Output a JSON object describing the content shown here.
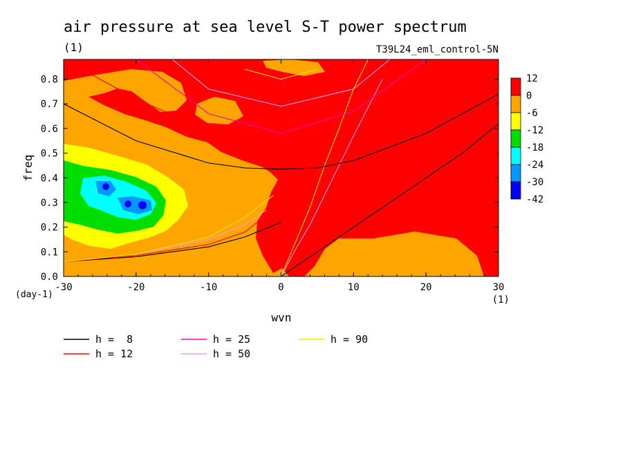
{
  "chart_data": {
    "type": "heatmap",
    "title": "air pressure at sea level S-T power spectrum",
    "units_label": "(1)",
    "run_label": "T39L24_eml_control-5N",
    "xlabel": "wvn",
    "x_units": "(1)",
    "ylabel": "freq",
    "y_units": "(day-1)",
    "xlim": [
      -30,
      30
    ],
    "ylim": [
      0,
      0.88
    ],
    "x_ticks": [
      -30,
      -20,
      -10,
      0,
      10,
      20,
      30
    ],
    "y_ticks": [
      0.0,
      0.1,
      0.2,
      0.3,
      0.4,
      0.5,
      0.6,
      0.7,
      0.8
    ],
    "colorbar": {
      "labels": [
        "12",
        "0",
        "-6",
        "-12",
        "-18",
        "-24",
        "-30",
        "-42"
      ],
      "colors": [
        "#ff0000",
        "#ffa500",
        "#ffff00",
        "#00dd00",
        "#00ffff",
        "#0099ff",
        "#0000ff"
      ]
    },
    "series": [
      {
        "name": "h =  8",
        "color": "#000000"
      },
      {
        "name": "h = 12",
        "color": "#ff0000"
      },
      {
        "name": "h = 25",
        "color": "#ff00aa"
      },
      {
        "name": "h = 50",
        "color": "#e9a0e9"
      },
      {
        "name": "h = 90",
        "color": "#ffe000"
      }
    ],
    "dispersion_curves": [
      {
        "kind": "kelvin",
        "h": 8,
        "x": [
          0,
          5,
          10,
          15,
          20,
          25,
          30
        ],
        "y": [
          0.0,
          0.1,
          0.2,
          0.3,
          0.4,
          0.5,
          0.62
        ]
      },
      {
        "kind": "kelvin",
        "h": 90,
        "x": [
          0,
          2,
          4,
          6,
          8,
          10,
          12
        ],
        "y": [
          0.0,
          0.14,
          0.28,
          0.45,
          0.6,
          0.76,
          0.88
        ]
      },
      {
        "kind": "kelvin",
        "h": 50,
        "x": [
          0,
          2,
          4,
          6,
          8,
          10,
          14
        ],
        "y": [
          0.0,
          0.11,
          0.21,
          0.33,
          0.45,
          0.57,
          0.8
        ]
      },
      {
        "kind": "ig_n1",
        "h": 8,
        "x": [
          -30,
          -20,
          -10,
          -5,
          0,
          5,
          10,
          20,
          30
        ],
        "y": [
          0.7,
          0.55,
          0.46,
          0.44,
          0.435,
          0.44,
          0.47,
          0.58,
          0.74
        ]
      },
      {
        "kind": "ig_n1",
        "h": 12,
        "x": [
          -30,
          -20,
          -10,
          0
        ],
        "y": [
          0.88,
          0.72,
          0.59,
          0.5
        ]
      },
      {
        "kind": "ig_n1",
        "h": 25,
        "x": [
          -20,
          -10,
          0,
          10,
          20
        ],
        "y": [
          0.88,
          0.66,
          0.58,
          0.67,
          0.88
        ]
      },
      {
        "kind": "ig_n1",
        "h": 50,
        "x": [
          -15,
          -10,
          0,
          10,
          15
        ],
        "y": [
          0.88,
          0.76,
          0.69,
          0.76,
          0.88
        ]
      },
      {
        "kind": "ig_n1",
        "h": 90,
        "x": [
          -5,
          0,
          5
        ],
        "y": [
          0.84,
          0.8,
          0.84
        ]
      },
      {
        "kind": "rossby",
        "h": 8,
        "x": [
          -30,
          -20,
          -10,
          -5,
          0
        ],
        "y": [
          0.06,
          0.08,
          0.12,
          0.16,
          0.22
        ]
      },
      {
        "kind": "rossby",
        "h": 12,
        "x": [
          -30,
          -20,
          -10,
          -5,
          -2
        ],
        "y": [
          0.06,
          0.085,
          0.13,
          0.18,
          0.25
        ]
      },
      {
        "kind": "rossby",
        "h": 50,
        "x": [
          -30,
          -20,
          -10,
          -5,
          -2
        ],
        "y": [
          0.06,
          0.09,
          0.15,
          0.21,
          0.27
        ]
      },
      {
        "kind": "rossby",
        "h": 90,
        "x": [
          -30,
          -20,
          -10,
          -5,
          -1
        ],
        "y": [
          0.06,
          0.09,
          0.16,
          0.24,
          0.33
        ]
      }
    ],
    "power_regions": [
      {
        "value_band": "-6..0",
        "x": [
          -30,
          30
        ],
        "y": [
          0,
          0.88
        ]
      },
      {
        "value_band": "0..12",
        "x": [
          -2,
          30
        ],
        "y": [
          0.2,
          0.88
        ]
      },
      {
        "value_band": "-12..-6",
        "x": [
          -30,
          -13
        ],
        "y": [
          0.13,
          0.44
        ]
      },
      {
        "value_band": "-18..-12",
        "x": [
          -30,
          -16
        ],
        "y": [
          0.19,
          0.38
        ]
      },
      {
        "value_band": "-24..-18",
        "x": [
          -27,
          -18
        ],
        "y": [
          0.24,
          0.37
        ]
      },
      {
        "value_band": "-30..-24",
        "x": [
          -25,
          -19
        ],
        "y": [
          0.28,
          0.37
        ]
      },
      {
        "value_band": "-42..-30",
        "x": [
          -24,
          -19
        ],
        "y": [
          0.28,
          0.37
        ]
      }
    ]
  }
}
